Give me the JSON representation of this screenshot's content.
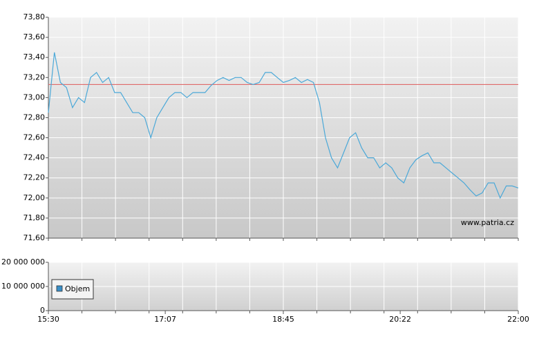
{
  "chart_data": [
    {
      "type": "line",
      "xlim": [
        "15:30",
        "22:00"
      ],
      "ylim": [
        71.6,
        73.8
      ],
      "yticks": [
        {
          "value": 71.6,
          "label": "71,60"
        },
        {
          "value": 71.8,
          "label": "71,80"
        },
        {
          "value": 72.0,
          "label": "72,00"
        },
        {
          "value": 72.2,
          "label": "72,20"
        },
        {
          "value": 72.4,
          "label": "72,40"
        },
        {
          "value": 72.6,
          "label": "72,60"
        },
        {
          "value": 72.8,
          "label": "72,80"
        },
        {
          "value": 73.0,
          "label": "73,00"
        },
        {
          "value": 73.2,
          "label": "73,20"
        },
        {
          "value": 73.4,
          "label": "73,40"
        },
        {
          "value": 73.6,
          "label": "73,60"
        },
        {
          "value": 73.8,
          "label": "73,80"
        }
      ],
      "grid": true,
      "reference_line": {
        "value": 73.13,
        "color": "#e06a6a"
      },
      "annotation": "www.patria.cz",
      "x": [
        "15:30",
        "15:35",
        "15:40",
        "15:45",
        "15:50",
        "15:55",
        "16:00",
        "16:05",
        "16:10",
        "16:15",
        "16:20",
        "16:25",
        "16:30",
        "16:35",
        "16:40",
        "16:45",
        "16:50",
        "16:55",
        "17:00",
        "17:05",
        "17:10",
        "17:15",
        "17:20",
        "17:25",
        "17:30",
        "17:35",
        "17:40",
        "17:45",
        "17:50",
        "17:55",
        "18:00",
        "18:05",
        "18:10",
        "18:15",
        "18:20",
        "18:25",
        "18:30",
        "18:35",
        "18:40",
        "18:45",
        "18:50",
        "18:55",
        "19:00",
        "19:05",
        "19:10",
        "19:15",
        "19:20",
        "19:25",
        "19:30",
        "19:35",
        "19:40",
        "19:45",
        "19:50",
        "19:55",
        "20:00",
        "20:05",
        "20:10",
        "20:15",
        "20:20",
        "20:25",
        "20:30",
        "20:35",
        "20:40",
        "20:45",
        "20:50",
        "20:55",
        "21:00",
        "21:05",
        "21:10",
        "21:15",
        "21:20",
        "21:25",
        "21:30",
        "21:35",
        "21:40",
        "21:45",
        "21:50",
        "21:55",
        "22:00"
      ],
      "series": [
        {
          "color": "#4aa8d8",
          "values": [
            72.85,
            73.45,
            73.15,
            73.1,
            72.9,
            73.0,
            72.95,
            73.2,
            73.25,
            73.15,
            73.2,
            73.05,
            73.05,
            72.95,
            72.85,
            72.85,
            72.8,
            72.6,
            72.8,
            72.9,
            73.0,
            73.05,
            73.05,
            73.0,
            73.05,
            73.05,
            73.05,
            73.12,
            73.17,
            73.2,
            73.17,
            73.2,
            73.2,
            73.15,
            73.13,
            73.15,
            73.25,
            73.25,
            73.2,
            73.15,
            73.17,
            73.2,
            73.15,
            73.18,
            73.15,
            72.95,
            72.6,
            72.4,
            72.3,
            72.45,
            72.6,
            72.65,
            72.5,
            72.4,
            72.4,
            72.3,
            72.35,
            72.3,
            72.2,
            72.15,
            72.3,
            72.38,
            72.42,
            72.45,
            72.35,
            72.35,
            72.3,
            72.25,
            72.2,
            72.15,
            72.08,
            72.02,
            72.05,
            72.15,
            72.15,
            72.0,
            72.12,
            72.12,
            72.1
          ]
        }
      ]
    },
    {
      "type": "bar",
      "xlim": [
        "15:30",
        "22:00"
      ],
      "xticks": [
        "15:30",
        "17:07",
        "18:45",
        "20:22",
        "22:00"
      ],
      "ylim": [
        0,
        20000000
      ],
      "yticks": [
        {
          "value": 0,
          "label": "0"
        },
        {
          "value": 10000000,
          "label": "10 000 000"
        },
        {
          "value": 20000000,
          "label": "20 000 000"
        }
      ],
      "grid": true,
      "series": [
        {
          "name": "Objem",
          "color": "#3a8fc8",
          "values": []
        }
      ]
    }
  ]
}
